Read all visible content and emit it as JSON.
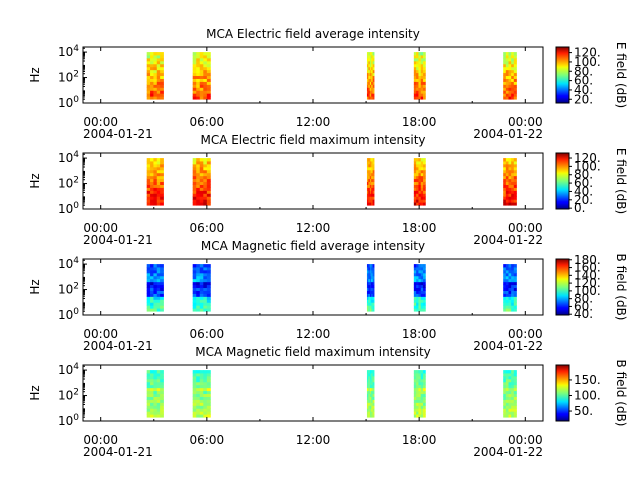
{
  "figure": {
    "x_ticks": [
      "00:00",
      "06:00",
      "12:00",
      "18:00",
      "00:00"
    ],
    "x_tick_hours": [
      0,
      6,
      12,
      18,
      24
    ],
    "date_start": "2004-01-21",
    "date_end": "2004-01-22",
    "x_range_hours": [
      -1.0,
      25.0
    ],
    "y_label": "Hz",
    "y_ticks": [
      "10^0",
      "10^2",
      "10^4"
    ],
    "y_range_log10": [
      0,
      4.4
    ],
    "colormap": "jet",
    "colors": {
      "text": "#000000",
      "background": "#ffffff"
    }
  },
  "chart_data": [
    {
      "type": "heatmap",
      "title": "MCA  Electric field average intensity",
      "xlabel": "",
      "ylabel": "Hz",
      "colorbar_label": "E field (dB)",
      "colorbar_ticks": [
        "20.",
        "40.",
        "60.",
        "80.",
        "100.",
        "120."
      ],
      "colorbar_tick_values": [
        20,
        40,
        60,
        80,
        100,
        120
      ],
      "colorbar_range": [
        12,
        132
      ],
      "level_low_db": 80,
      "level_high_db": 110,
      "blocks_hours": [
        [
          2.6,
          3.55
        ],
        [
          5.2,
          6.2
        ],
        [
          15.05,
          15.45
        ],
        [
          17.7,
          18.35
        ],
        [
          22.75,
          23.5
        ]
      ],
      "freq_range_log10": [
        0.3,
        4.0
      ]
    },
    {
      "type": "heatmap",
      "title": "MCA  Electric field maximum intensity",
      "xlabel": "",
      "ylabel": "Hz",
      "colorbar_label": "E field (dB)",
      "colorbar_ticks": [
        "0.",
        "20.",
        "40.",
        "60.",
        "80.",
        "100.",
        "120."
      ],
      "colorbar_tick_values": [
        0,
        20,
        40,
        60,
        80,
        100,
        120
      ],
      "colorbar_range": [
        -2,
        132
      ],
      "level_low_db": 85,
      "level_high_db": 118,
      "blocks_hours": [
        [
          2.6,
          3.55
        ],
        [
          5.2,
          6.2
        ],
        [
          15.05,
          15.45
        ],
        [
          17.7,
          18.35
        ],
        [
          22.75,
          23.5
        ]
      ],
      "freq_range_log10": [
        0.3,
        4.0
      ]
    },
    {
      "type": "heatmap",
      "title": "MCA  Magnetic field average intensity",
      "xlabel": "",
      "ylabel": "Hz",
      "colorbar_label": "B field (dB)",
      "colorbar_ticks": [
        "40.",
        "60.",
        "80.",
        "100.",
        "120.",
        "140.",
        "160.",
        "180."
      ],
      "colorbar_tick_values": [
        40,
        60,
        80,
        100,
        120,
        140,
        160,
        180
      ],
      "colorbar_range": [
        38,
        182
      ],
      "level_low_db": 65,
      "level_high_db": 105,
      "blocks_hours": [
        [
          2.6,
          3.55
        ],
        [
          5.2,
          6.2
        ],
        [
          15.05,
          15.45
        ],
        [
          17.7,
          18.35
        ],
        [
          22.75,
          23.5
        ]
      ],
      "freq_range_log10": [
        0.3,
        4.0
      ]
    },
    {
      "type": "heatmap",
      "title": "MCA  Magnetic field maximum intensity",
      "xlabel": "",
      "ylabel": "Hz",
      "colorbar_label": "B field (dB)",
      "colorbar_ticks": [
        "50.",
        "100.",
        "150."
      ],
      "colorbar_tick_values": [
        50,
        100,
        150
      ],
      "colorbar_range": [
        18,
        198
      ],
      "level_low_db": 95,
      "level_high_db": 120,
      "blocks_hours": [
        [
          2.6,
          3.55
        ],
        [
          5.2,
          6.2
        ],
        [
          15.05,
          15.45
        ],
        [
          17.7,
          18.35
        ],
        [
          22.75,
          23.5
        ]
      ],
      "freq_range_log10": [
        0.3,
        4.0
      ]
    }
  ]
}
